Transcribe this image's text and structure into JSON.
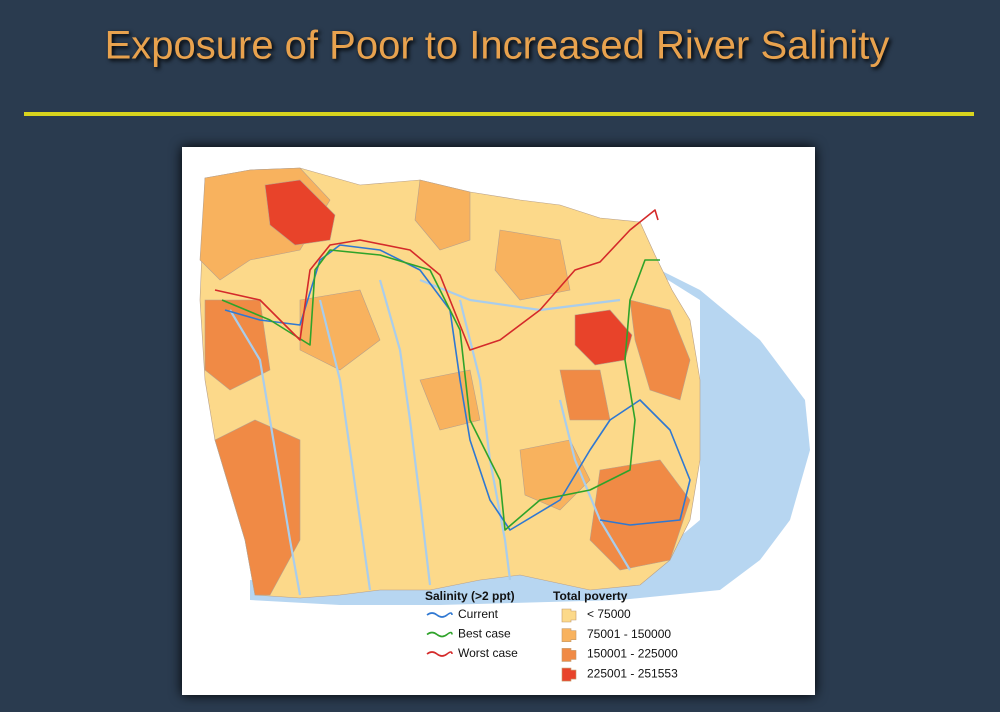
{
  "title": "Exposure of Poor to Increased River Salinity",
  "legend": {
    "salinity": {
      "title": "Salinity (>2 ppt)",
      "items": [
        {
          "label": "Current",
          "color": "#2f78d2"
        },
        {
          "label": "Best case",
          "color": "#2fa32a"
        },
        {
          "label": "Worst case",
          "color": "#d42a2a"
        }
      ]
    },
    "poverty": {
      "title": "Total poverty",
      "items": [
        {
          "label": "< 75000",
          "color": "#fcd98a"
        },
        {
          "label": "75001 - 150000",
          "color": "#f8b25e"
        },
        {
          "label": "150001 - 225000",
          "color": "#f08a45"
        },
        {
          "label": "225001 - 251553",
          "color": "#e8432a"
        }
      ]
    }
  }
}
